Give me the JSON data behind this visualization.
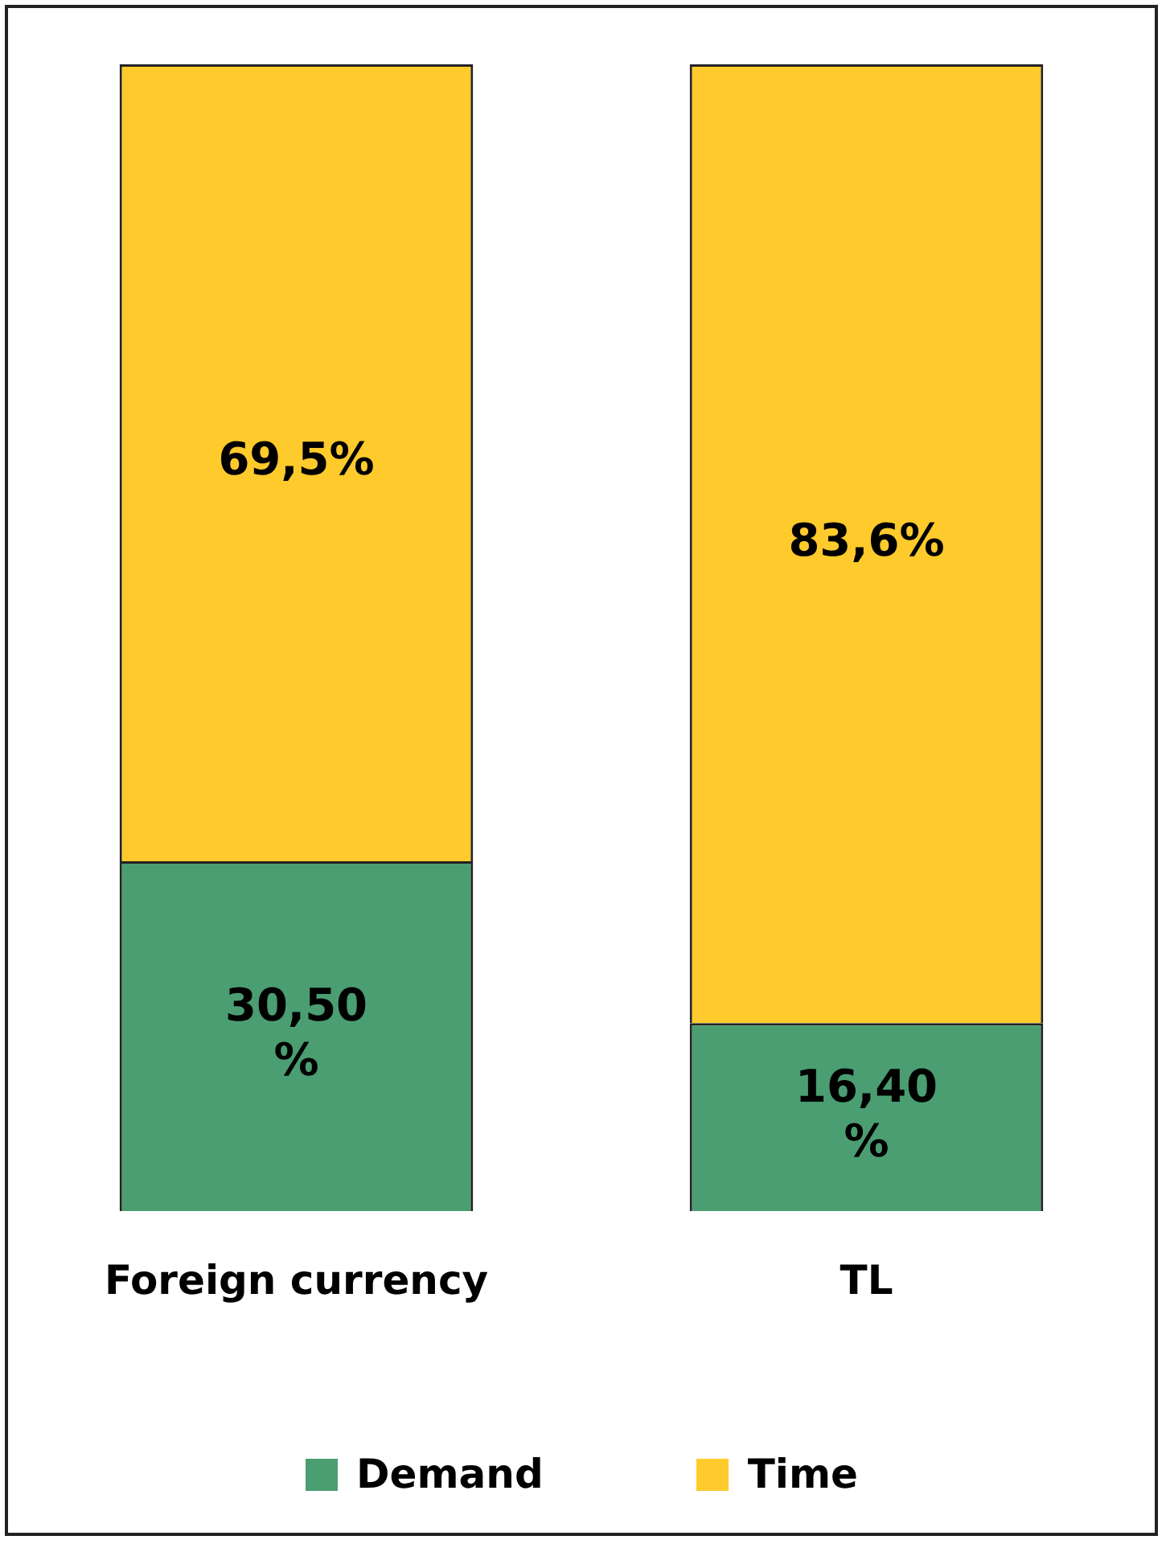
{
  "chart_data": {
    "type": "bar",
    "stacked": true,
    "categories": [
      "Foreign currency",
      "TL"
    ],
    "series": [
      {
        "name": "Demand",
        "color": "#4a9e72",
        "values": [
          30.5,
          16.4
        ],
        "value_labels": [
          "30,50 %",
          "16,40 %"
        ]
      },
      {
        "name": "Time",
        "color": "#ffca2c",
        "values": [
          69.5,
          83.6
        ],
        "value_labels": [
          "69,5%",
          "83,6%"
        ]
      }
    ],
    "ylim": [
      0,
      100
    ],
    "tick_labels": "x",
    "grid": false,
    "legend": "bottom"
  }
}
